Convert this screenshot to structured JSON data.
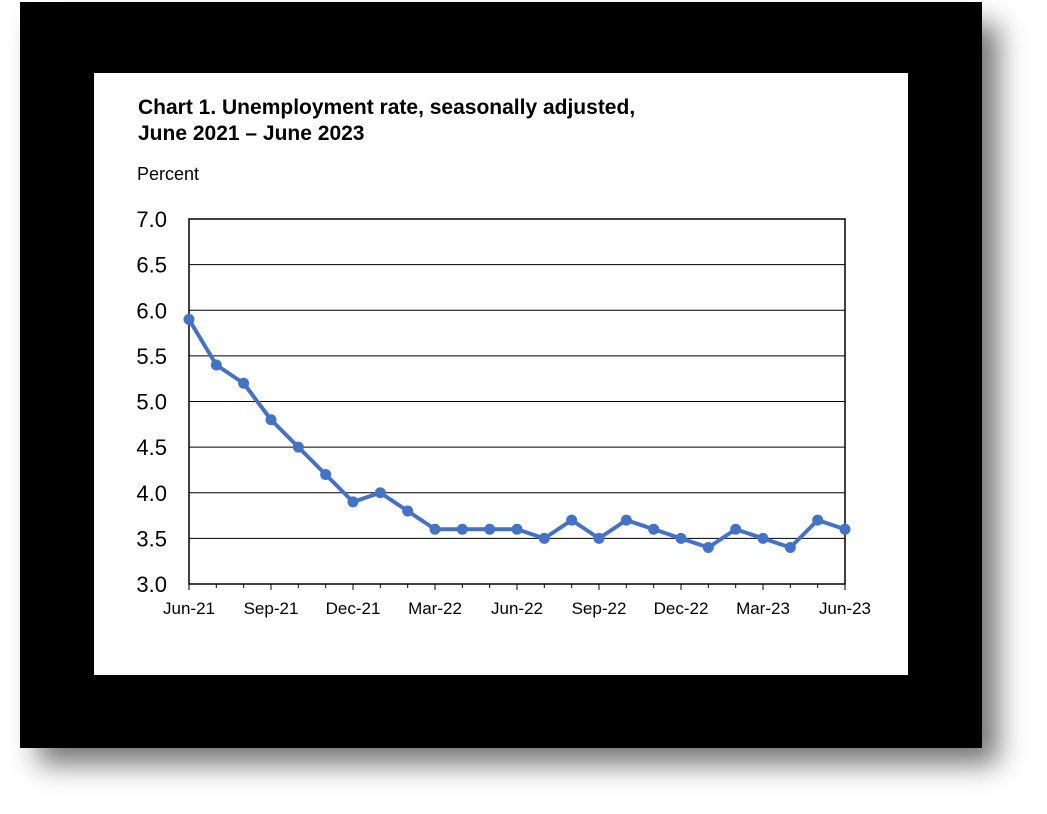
{
  "chart_data": {
    "type": "line",
    "title": "Chart 1. Unemployment rate, seasonally adjusted,",
    "subtitle": "June 2021 – June 2023",
    "ylabel": "Percent",
    "xlabel": "",
    "ylim": [
      3.0,
      7.0
    ],
    "yticks": [
      "7.0",
      "6.5",
      "6.0",
      "5.5",
      "5.0",
      "4.5",
      "4.0",
      "3.5",
      "3.0"
    ],
    "x_tick_labels": [
      "Jun-21",
      "Sep-21",
      "Dec-21",
      "Mar-22",
      "Jun-22",
      "Sep-22",
      "Dec-22",
      "Mar-23",
      "Jun-23"
    ],
    "x": [
      "Jun-21",
      "Jul-21",
      "Aug-21",
      "Sep-21",
      "Oct-21",
      "Nov-21",
      "Dec-21",
      "Jan-22",
      "Feb-22",
      "Mar-22",
      "Apr-22",
      "May-22",
      "Jun-22",
      "Jul-22",
      "Aug-22",
      "Sep-22",
      "Oct-22",
      "Nov-22",
      "Dec-22",
      "Jan-23",
      "Feb-23",
      "Mar-23",
      "Apr-23",
      "May-23",
      "Jun-23"
    ],
    "series": [
      {
        "values": [
          5.9,
          5.4,
          5.2,
          4.8,
          4.5,
          4.2,
          3.9,
          4.0,
          3.8,
          3.6,
          3.6,
          3.6,
          3.6,
          3.5,
          3.7,
          3.5,
          3.7,
          3.6,
          3.5,
          3.4,
          3.6,
          3.5,
          3.4,
          3.7,
          3.6
        ],
        "color": "#4472c4"
      }
    ],
    "grid": true,
    "legend": "none"
  }
}
